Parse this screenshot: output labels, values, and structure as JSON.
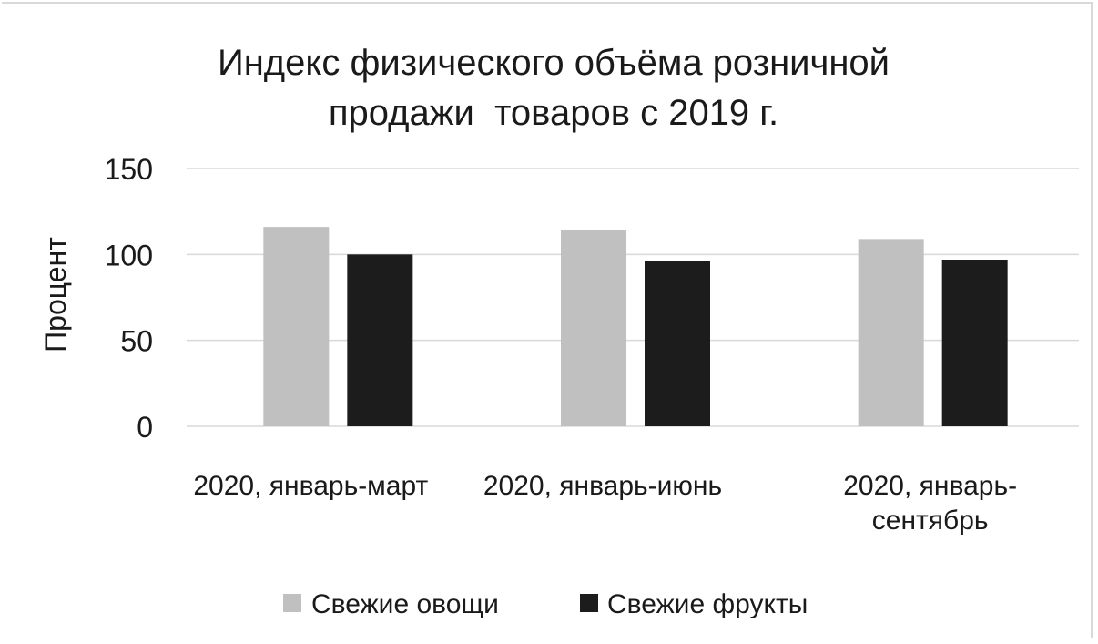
{
  "chart_data": {
    "type": "bar",
    "title_lines": [
      "Индекс физического объёма розничной",
      "продажи  товаров с 2019 г."
    ],
    "ylabel": "Процент",
    "xlabel": "",
    "ylim": [
      0,
      150
    ],
    "yticks": [
      0,
      50,
      100,
      150
    ],
    "grid": true,
    "legend_position": "bottom",
    "categories": [
      [
        "2020, январь-март"
      ],
      [
        "2020, январь-июнь"
      ],
      [
        "2020, январь-",
        "сентябрь"
      ]
    ],
    "series": [
      {
        "name": "Свежие овощи",
        "values": [
          116,
          114,
          109
        ]
      },
      {
        "name": "Свежие фрукты",
        "values": [
          100,
          96,
          97
        ]
      }
    ],
    "colors": [
      "#c0c0c0",
      "#1c1c1c"
    ],
    "grid_color": "#d9d9d9",
    "axis_color": "#d9d9d9"
  }
}
